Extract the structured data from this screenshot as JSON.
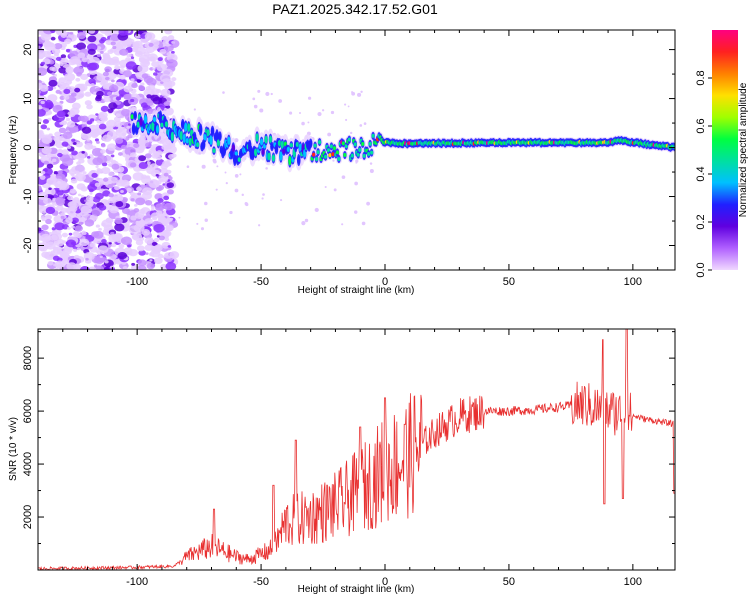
{
  "title": "PAZ1.2025.342.17.52.G01",
  "chart_data": [
    {
      "type": "heatmap",
      "name": "spectrogram",
      "xlabel": "Height of straight line (km)",
      "ylabel": "Frequency (Hz)",
      "xlim": [
        -140,
        117
      ],
      "ylim": [
        -25,
        24
      ],
      "xticks": [
        -100,
        -50,
        0,
        50,
        100
      ],
      "yticks": [
        -20,
        -10,
        0,
        10,
        20
      ],
      "colorbar": {
        "label": "Normalized spectral amplitude",
        "range": [
          0.0,
          1.0
        ],
        "ticks": [
          0.0,
          0.2,
          0.4,
          0.6,
          0.8
        ],
        "tick_labels": [
          "0.0",
          "0.2",
          "0.4",
          "0.6",
          "0.8"
        ],
        "colormap": [
          "#f0d8ff",
          "#b060ff",
          "#6000e0",
          "#2020ff",
          "#00c0ff",
          "#00e0a0",
          "#00ff40",
          "#a0ff00",
          "#ffe000",
          "#ff8000",
          "#ff2020",
          "#ff0080"
        ]
      },
      "ridge": [
        {
          "x": -100,
          "f": 5.0
        },
        {
          "x": -90,
          "f": 4.5
        },
        {
          "x": -80,
          "f": 3.0
        },
        {
          "x": -70,
          "f": 1.5
        },
        {
          "x": -60,
          "f": -1.0
        },
        {
          "x": -50,
          "f": 0.5
        },
        {
          "x": -40,
          "f": -1.0
        },
        {
          "x": -30,
          "f": -0.5
        },
        {
          "x": -20,
          "f": -0.5
        },
        {
          "x": -10,
          "f": 0.0
        },
        {
          "x": 0,
          "f": 1.0
        },
        {
          "x": 10,
          "f": 0.8
        },
        {
          "x": 50,
          "f": 1.0
        },
        {
          "x": 90,
          "f": 1.0
        },
        {
          "x": 95,
          "f": 1.5
        },
        {
          "x": 100,
          "f": 1.0
        },
        {
          "x": 117,
          "f": 0.0
        }
      ],
      "noise_region_xmax": -85
    },
    {
      "type": "line",
      "name": "snr",
      "xlabel": "Height of straight line (km)",
      "ylabel": "SNR (10 * v/v)",
      "xlim": [
        -140,
        117
      ],
      "ylim": [
        0,
        9100
      ],
      "xticks": [
        -100,
        -50,
        0,
        50,
        100
      ],
      "yticks": [
        2000,
        4000,
        6000,
        8000
      ],
      "color": "#e83030",
      "envelope": [
        {
          "x": -140,
          "y": 50
        },
        {
          "x": -100,
          "y": 100
        },
        {
          "x": -85,
          "y": 150
        },
        {
          "x": -80,
          "y": 500
        },
        {
          "x": -70,
          "y": 900
        },
        {
          "x": -60,
          "y": 500
        },
        {
          "x": -55,
          "y": 400
        },
        {
          "x": -45,
          "y": 800
        },
        {
          "x": -40,
          "y": 1800
        },
        {
          "x": -30,
          "y": 2000
        },
        {
          "x": -20,
          "y": 2400
        },
        {
          "x": -10,
          "y": 3000
        },
        {
          "x": 0,
          "y": 3800
        },
        {
          "x": 10,
          "y": 4300
        },
        {
          "x": 20,
          "y": 5200
        },
        {
          "x": 30,
          "y": 5800
        },
        {
          "x": 40,
          "y": 6000
        },
        {
          "x": 50,
          "y": 6000
        },
        {
          "x": 60,
          "y": 6050
        },
        {
          "x": 70,
          "y": 6150
        },
        {
          "x": 80,
          "y": 6250
        },
        {
          "x": 90,
          "y": 6000
        },
        {
          "x": 97,
          "y": 5900
        },
        {
          "x": 105,
          "y": 5700
        },
        {
          "x": 117,
          "y": 5500
        }
      ],
      "spikes": [
        {
          "x": -69,
          "y": 2300
        },
        {
          "x": -45,
          "y": 3200
        },
        {
          "x": -36,
          "y": 4900
        },
        {
          "x": -10,
          "y": 5400
        },
        {
          "x": 0,
          "y": 6500
        },
        {
          "x": 8,
          "y": 5500
        },
        {
          "x": 88,
          "y": 8700
        },
        {
          "x": 88.5,
          "y": 2500
        },
        {
          "x": 96,
          "y": 2700
        },
        {
          "x": 97.5,
          "y": 9100
        }
      ]
    }
  ]
}
